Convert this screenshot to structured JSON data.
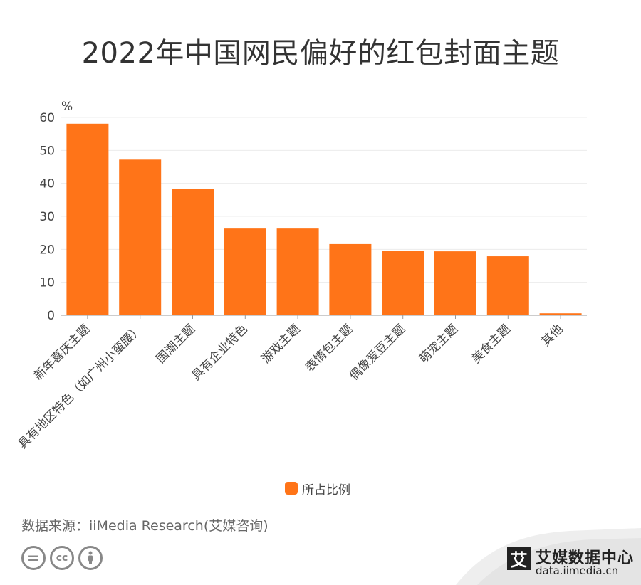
{
  "title": "2022年中国网民偏好的红包封面主题",
  "chart_data": {
    "type": "bar",
    "title": "2022年中国网民偏好的红包封面主题",
    "ylabel": "%",
    "xlabel": "",
    "ylim": [
      0,
      60
    ],
    "yticks": [
      0,
      10,
      20,
      30,
      40,
      50,
      60
    ],
    "grid": true,
    "legend_position": "bottom",
    "categories": [
      "新年喜庆主题",
      "具有地区特色（如广州小蛮腰）",
      "国潮主题",
      "具有企业特色",
      "游戏主题",
      "表情包主题",
      "偶像爱豆主题",
      "萌宠主题",
      "美食主题",
      "其他"
    ],
    "series": [
      {
        "name": "所占比例",
        "color": "#FF7418",
        "values": [
          58.1,
          47.2,
          38.2,
          26.3,
          26.3,
          21.6,
          19.6,
          19.4,
          17.9,
          0.6
        ]
      }
    ]
  },
  "legend": {
    "label": "所占比例"
  },
  "source": "数据来源：iiMedia Research(艾媒咨询)",
  "license_icons": [
    "equals-icon",
    "cc-icon",
    "person-icon"
  ],
  "license_glyphs": {
    "equals": "=",
    "cc": "cc"
  },
  "brand": {
    "logo_char": "艾",
    "name": "艾媒数据中心",
    "url": "data.iimedia.cn"
  }
}
